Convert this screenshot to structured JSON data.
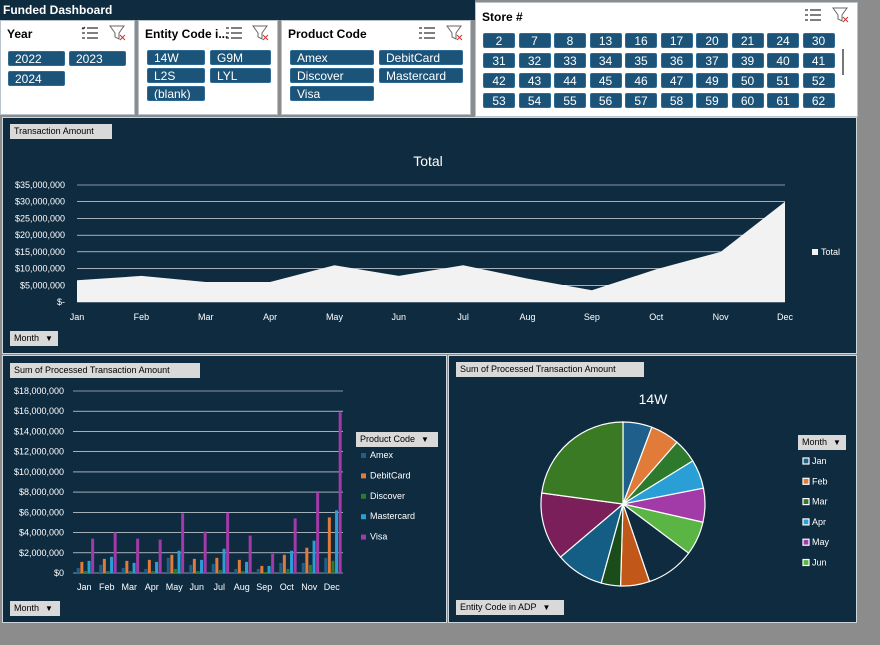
{
  "dashboard_title": "Funded Dashboard",
  "year_slicer": {
    "header": "Year",
    "items": [
      "2022",
      "2023",
      "2024"
    ]
  },
  "entity_slicer": {
    "header": "Entity Code i...",
    "items": [
      "14W",
      "G9M",
      "L2S",
      "LYL",
      "(blank)"
    ]
  },
  "product_slicer": {
    "header": "Product Code",
    "items": [
      "Amex",
      "DebitCard",
      "Discover",
      "Mastercard",
      "Visa"
    ]
  },
  "store_slicer": {
    "header": "Store #",
    "items": [
      "2",
      "7",
      "8",
      "13",
      "16",
      "17",
      "20",
      "21",
      "24",
      "30",
      "31",
      "32",
      "33",
      "34",
      "35",
      "36",
      "37",
      "39",
      "40",
      "41",
      "42",
      "43",
      "44",
      "45",
      "46",
      "47",
      "49",
      "50",
      "51",
      "52",
      "53",
      "54",
      "55",
      "56",
      "57",
      "58",
      "59",
      "60",
      "61",
      "62"
    ]
  },
  "top_panel": {
    "field_button": "Transaction Amount",
    "axis_button": "Month",
    "chart_data": {
      "type": "area",
      "title": "Total",
      "categories": [
        "Jan",
        "Feb",
        "Mar",
        "Apr",
        "May",
        "Jun",
        "Jul",
        "Aug",
        "Sep",
        "Oct",
        "Nov",
        "Dec"
      ],
      "series": [
        {
          "name": "Total",
          "values": [
            6500000,
            7800000,
            6000000,
            6000000,
            11000000,
            7800000,
            11000000,
            7000000,
            3500000,
            9800000,
            15000000,
            30000000
          ]
        }
      ],
      "ylim": [
        0,
        35000000
      ],
      "yticks": [
        "$35,000,000",
        "$30,000,000",
        "$25,000,000",
        "$20,000,000",
        "$15,000,000",
        "$10,000,000",
        "$5,000,000",
        "$-"
      ],
      "legend": [
        "Total"
      ],
      "colors": {
        "area": "#f2f2f2",
        "grid": "#ffffff"
      }
    }
  },
  "bottom_left_panel": {
    "field_button": "Sum of Processed Transaction Amount",
    "axis_button": "Month",
    "legend_button": "Product Code",
    "chart_data": {
      "type": "bar",
      "categories": [
        "Jan",
        "Feb",
        "Mar",
        "Apr",
        "May",
        "Jun",
        "Jul",
        "Aug",
        "Sep",
        "Oct",
        "Nov",
        "Dec"
      ],
      "ylim": [
        0,
        18000000
      ],
      "yticks": [
        "$18,000,000",
        "$16,000,000",
        "$14,000,000",
        "$12,000,000",
        "$10,000,000",
        "$8,000,000",
        "$6,000,000",
        "$4,000,000",
        "$2,000,000",
        "$0"
      ],
      "series": [
        {
          "name": "Amex",
          "color": "#1f5f8b",
          "values": [
            500000,
            800000,
            500000,
            400000,
            1500000,
            800000,
            900000,
            400000,
            400000,
            1000000,
            1000000,
            1500000
          ]
        },
        {
          "name": "DebitCard",
          "color": "#e07b39",
          "values": [
            1100000,
            1400000,
            1200000,
            1300000,
            1800000,
            1400000,
            1500000,
            1300000,
            700000,
            1800000,
            2500000,
            5500000
          ]
        },
        {
          "name": "Discover",
          "color": "#2d7a2d",
          "values": [
            200000,
            200000,
            200000,
            200000,
            400000,
            200000,
            300000,
            200000,
            100000,
            400000,
            800000,
            1200000
          ]
        },
        {
          "name": "Mastercard",
          "color": "#2a9fd6",
          "values": [
            1200000,
            1600000,
            1000000,
            1100000,
            2200000,
            1300000,
            2400000,
            1100000,
            700000,
            2200000,
            3200000,
            6200000
          ]
        },
        {
          "name": "Visa",
          "color": "#a23ba8",
          "values": [
            3400000,
            4000000,
            3400000,
            3300000,
            5900000,
            4100000,
            6000000,
            3700000,
            1900000,
            5400000,
            8000000,
            15900000
          ]
        }
      ]
    }
  },
  "bottom_right_panel": {
    "field_button": "Sum of Processed Transaction Amount",
    "axis_button": "Entity Code in ADP",
    "legend_button": "Month",
    "chart_data": {
      "type": "pie",
      "title": "14W",
      "legend": [
        "Jan",
        "Feb",
        "Mar",
        "Apr",
        "May",
        "Jun"
      ],
      "colors": [
        "#1f5f8b",
        "#e07b39",
        "#2d7a2d",
        "#2a9fd6",
        "#a23ba8",
        "#5bb545",
        "#0e2b40",
        "#c2571a",
        "#1b4d1b",
        "#145e85",
        "#7a1f5a",
        "#3a7a25"
      ],
      "slices": [
        6,
        6,
        5,
        6,
        7,
        7,
        10,
        6,
        4,
        10,
        14,
        24
      ]
    }
  }
}
